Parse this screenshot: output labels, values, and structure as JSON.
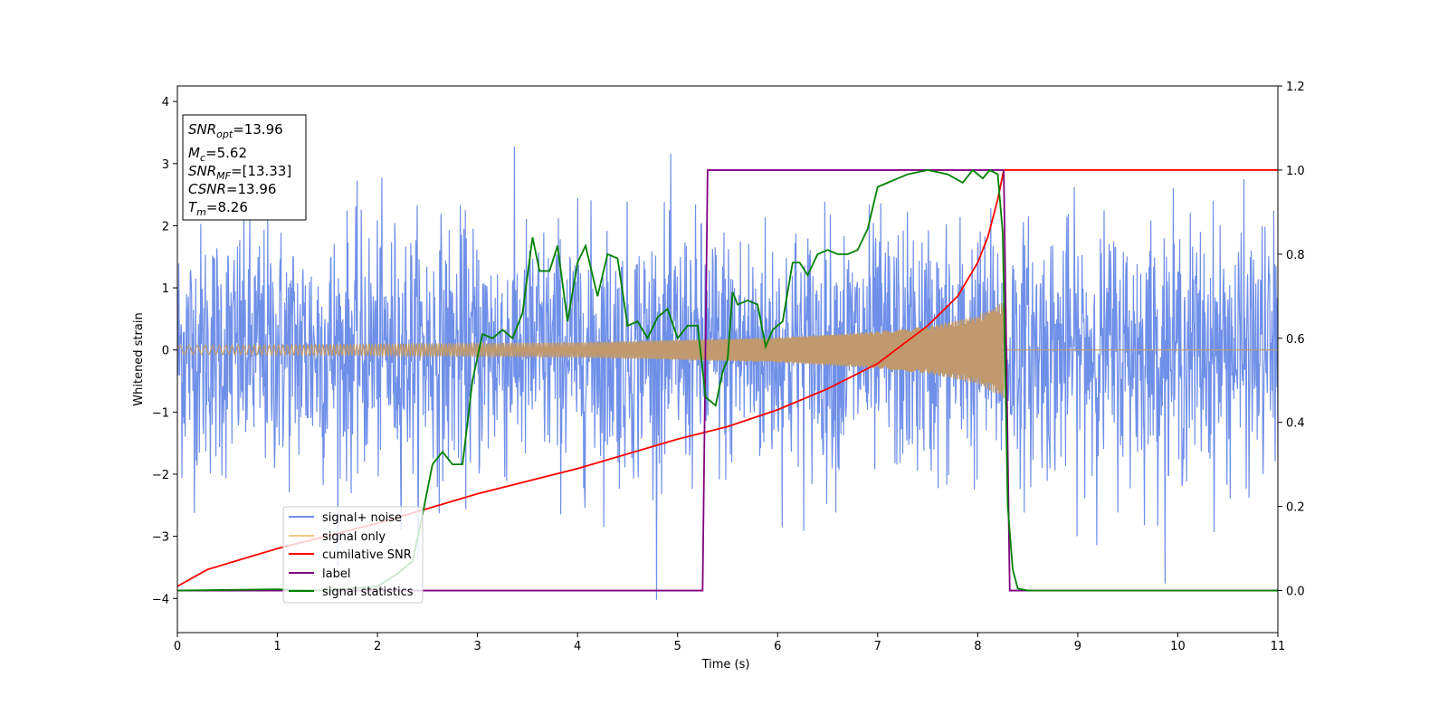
{
  "chart_data": {
    "type": "line",
    "xlabel": "Time (s)",
    "ylabel": "Whitened strain",
    "xlim": [
      0,
      11
    ],
    "ylim": [
      -4.55,
      4.25
    ],
    "y2lim": [
      -0.1,
      1.2
    ],
    "x_ticks": [
      "0",
      "1",
      "2",
      "3",
      "4",
      "5",
      "6",
      "7",
      "8",
      "9",
      "10",
      "11"
    ],
    "y_ticks": [
      "−4",
      "−3",
      "−2",
      "−1",
      "0",
      "1",
      "2",
      "3",
      "4"
    ],
    "y2_ticks": [
      "0.0",
      "0.2",
      "0.4",
      "0.6",
      "0.8",
      "1.0",
      "1.2"
    ],
    "grid": false,
    "legend_position": "lower-left",
    "colors": {
      "signal_noise": "#6f8fe8",
      "signal_only": "#f7c67f",
      "overlap": "#c09a6e",
      "cumulative_snr": "#ff0000",
      "label": "#800080",
      "signal_statistics": "#008000"
    },
    "annotation": {
      "snr_opt": {
        "sym": "SNR",
        "sub": "opt",
        "val": "=13.96"
      },
      "mc": {
        "sym": "M",
        "sub": "c",
        "val": "=5.62"
      },
      "snr_mf": {
        "sym": "SNR",
        "sub": "MF",
        "val": "=[13.33]"
      },
      "csnr": {
        "sym": "CSNR",
        "sub": "",
        "val": "=13.96"
      },
      "tm": {
        "sym": "T",
        "sub": "m",
        "val": "=8.26"
      }
    },
    "series": [
      {
        "name": "signal+ noise",
        "axis": "left",
        "kind": "noise",
        "std": 1.0,
        "t_start": 0,
        "t_end": 11
      },
      {
        "name": "signal only",
        "axis": "left",
        "kind": "chirp",
        "t_start": 0,
        "t_merge": 8.26,
        "envelope": [
          [
            0,
            0.07
          ],
          [
            2,
            0.09
          ],
          [
            4,
            0.12
          ],
          [
            6,
            0.2
          ],
          [
            7,
            0.3
          ],
          [
            7.5,
            0.38
          ],
          [
            8,
            0.55
          ],
          [
            8.2,
            0.72
          ],
          [
            8.26,
            0.78
          ]
        ]
      },
      {
        "name": "cumilative SNR",
        "axis": "right",
        "points": [
          [
            0,
            0.01
          ],
          [
            0.3,
            0.05
          ],
          [
            1,
            0.1
          ],
          [
            2,
            0.16
          ],
          [
            3,
            0.23
          ],
          [
            4,
            0.29
          ],
          [
            5,
            0.36
          ],
          [
            5.5,
            0.39
          ],
          [
            6,
            0.43
          ],
          [
            6.5,
            0.48
          ],
          [
            7,
            0.54
          ],
          [
            7.5,
            0.63
          ],
          [
            7.8,
            0.7
          ],
          [
            8,
            0.78
          ],
          [
            8.1,
            0.84
          ],
          [
            8.2,
            0.93
          ],
          [
            8.26,
            1.0
          ],
          [
            11,
            1.0
          ]
        ]
      },
      {
        "name": "label",
        "axis": "right",
        "points": [
          [
            0,
            0.0
          ],
          [
            5.25,
            0.0
          ],
          [
            5.3,
            1.0
          ],
          [
            8.26,
            1.0
          ],
          [
            8.32,
            0.0
          ],
          [
            11,
            0.0
          ]
        ]
      },
      {
        "name": "signal statistics",
        "axis": "right",
        "points": [
          [
            0,
            0.0
          ],
          [
            1,
            0.003
          ],
          [
            1.5,
            0.0
          ],
          [
            2,
            0.01
          ],
          [
            2.2,
            0.04
          ],
          [
            2.35,
            0.07
          ],
          [
            2.45,
            0.18
          ],
          [
            2.55,
            0.3
          ],
          [
            2.65,
            0.33
          ],
          [
            2.75,
            0.3
          ],
          [
            2.85,
            0.3
          ],
          [
            2.95,
            0.5
          ],
          [
            3.05,
            0.61
          ],
          [
            3.15,
            0.6
          ],
          [
            3.25,
            0.62
          ],
          [
            3.35,
            0.6
          ],
          [
            3.45,
            0.66
          ],
          [
            3.55,
            0.84
          ],
          [
            3.62,
            0.76
          ],
          [
            3.72,
            0.76
          ],
          [
            3.8,
            0.82
          ],
          [
            3.9,
            0.64
          ],
          [
            4.0,
            0.78
          ],
          [
            4.08,
            0.82
          ],
          [
            4.2,
            0.7
          ],
          [
            4.3,
            0.8
          ],
          [
            4.4,
            0.79
          ],
          [
            4.5,
            0.63
          ],
          [
            4.6,
            0.64
          ],
          [
            4.7,
            0.6
          ],
          [
            4.8,
            0.65
          ],
          [
            4.9,
            0.67
          ],
          [
            5.0,
            0.6
          ],
          [
            5.1,
            0.63
          ],
          [
            5.2,
            0.63
          ],
          [
            5.28,
            0.46
          ],
          [
            5.38,
            0.44
          ],
          [
            5.45,
            0.52
          ],
          [
            5.5,
            0.55
          ],
          [
            5.55,
            0.71
          ],
          [
            5.6,
            0.68
          ],
          [
            5.7,
            0.69
          ],
          [
            5.8,
            0.68
          ],
          [
            5.88,
            0.58
          ],
          [
            5.95,
            0.62
          ],
          [
            6.05,
            0.64
          ],
          [
            6.15,
            0.78
          ],
          [
            6.22,
            0.78
          ],
          [
            6.3,
            0.75
          ],
          [
            6.4,
            0.8
          ],
          [
            6.5,
            0.81
          ],
          [
            6.6,
            0.8
          ],
          [
            6.7,
            0.8
          ],
          [
            6.8,
            0.81
          ],
          [
            6.9,
            0.86
          ],
          [
            7.0,
            0.96
          ],
          [
            7.1,
            0.97
          ],
          [
            7.2,
            0.98
          ],
          [
            7.3,
            0.99
          ],
          [
            7.5,
            1.0
          ],
          [
            7.7,
            0.99
          ],
          [
            7.85,
            0.97
          ],
          [
            7.95,
            1.0
          ],
          [
            8.05,
            0.98
          ],
          [
            8.12,
            1.0
          ],
          [
            8.2,
            0.99
          ],
          [
            8.25,
            0.85
          ],
          [
            8.3,
            0.2
          ],
          [
            8.35,
            0.05
          ],
          [
            8.4,
            0.005
          ],
          [
            8.5,
            0.0
          ],
          [
            11,
            0.0
          ]
        ]
      }
    ]
  }
}
